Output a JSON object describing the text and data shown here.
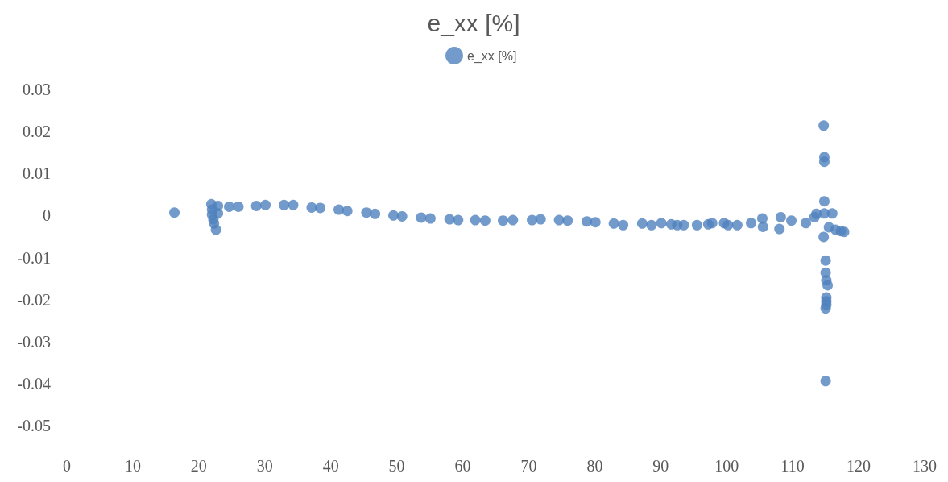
{
  "chart_data": {
    "type": "scatter",
    "title": "e_xx [%]",
    "legend": "top",
    "marker": "circle",
    "grid": false,
    "xlim": [
      0,
      130
    ],
    "xticks": [
      0,
      10,
      20,
      30,
      40,
      50,
      60,
      70,
      80,
      90,
      100,
      110,
      120,
      130
    ],
    "ylim": [
      -0.05,
      0.03
    ],
    "yticks": [
      -0.05,
      -0.04,
      -0.03,
      -0.02,
      -0.01,
      0,
      0.01,
      0.02,
      0.03
    ],
    "series": [
      {
        "name": "e_xx [%]",
        "color": "#4f81bd",
        "x": [
          16.3,
          21.9,
          22.9,
          22.0,
          22.0,
          22.2,
          22.3,
          22.6,
          22.9,
          24.6,
          26.0,
          28.7,
          30.1,
          32.9,
          34.3,
          37.1,
          38.4,
          41.2,
          42.5,
          45.4,
          46.7,
          49.5,
          50.8,
          53.7,
          55.1,
          58.0,
          59.3,
          61.9,
          63.4,
          66.1,
          67.6,
          70.5,
          71.8,
          74.6,
          75.9,
          78.8,
          80.1,
          82.9,
          84.3,
          87.2,
          88.6,
          90.1,
          91.6,
          92.5,
          93.5,
          95.5,
          97.2,
          97.8,
          99.6,
          100.2,
          101.6,
          103.7,
          105.4,
          105.5,
          108.0,
          108.2,
          109.8,
          112.0,
          113.3,
          113.6,
          114.8,
          116.0,
          114.8,
          114.7,
          115.5,
          116.5,
          117.3,
          117.8,
          114.7,
          114.8,
          114.8,
          115.0,
          115.0,
          115.1,
          115.3,
          115.1,
          115.1,
          115.1,
          115.0,
          115.0
        ],
        "values": [
          0.0007,
          0.0027,
          0.0023,
          0.0014,
          0.0002,
          -0.0009,
          -0.0019,
          -0.0034,
          0.0005,
          0.0021,
          0.0021,
          0.0023,
          0.0025,
          0.0025,
          0.0025,
          0.0019,
          0.0018,
          0.0014,
          0.0011,
          0.0007,
          0.0004,
          0.0,
          -0.0002,
          -0.0005,
          -0.0007,
          -0.0009,
          -0.0011,
          -0.0011,
          -0.0012,
          -0.0012,
          -0.0011,
          -0.0011,
          -0.0009,
          -0.0011,
          -0.0012,
          -0.0014,
          -0.0016,
          -0.0019,
          -0.0023,
          -0.0019,
          -0.0023,
          -0.0018,
          -0.0021,
          -0.0023,
          -0.0023,
          -0.0023,
          -0.0021,
          -0.0018,
          -0.0018,
          -0.0023,
          -0.0023,
          -0.0018,
          -0.0007,
          -0.0027,
          -0.0032,
          -0.0004,
          -0.0012,
          -0.0018,
          -0.0004,
          0.0004,
          0.0005,
          0.0005,
          0.0034,
          -0.0051,
          -0.0028,
          -0.0034,
          -0.0037,
          -0.0039,
          0.0214,
          0.0139,
          0.0128,
          -0.0107,
          -0.0136,
          -0.0154,
          -0.0166,
          -0.0195,
          -0.0204,
          -0.0212,
          -0.0221,
          -0.0394
        ]
      }
    ]
  }
}
